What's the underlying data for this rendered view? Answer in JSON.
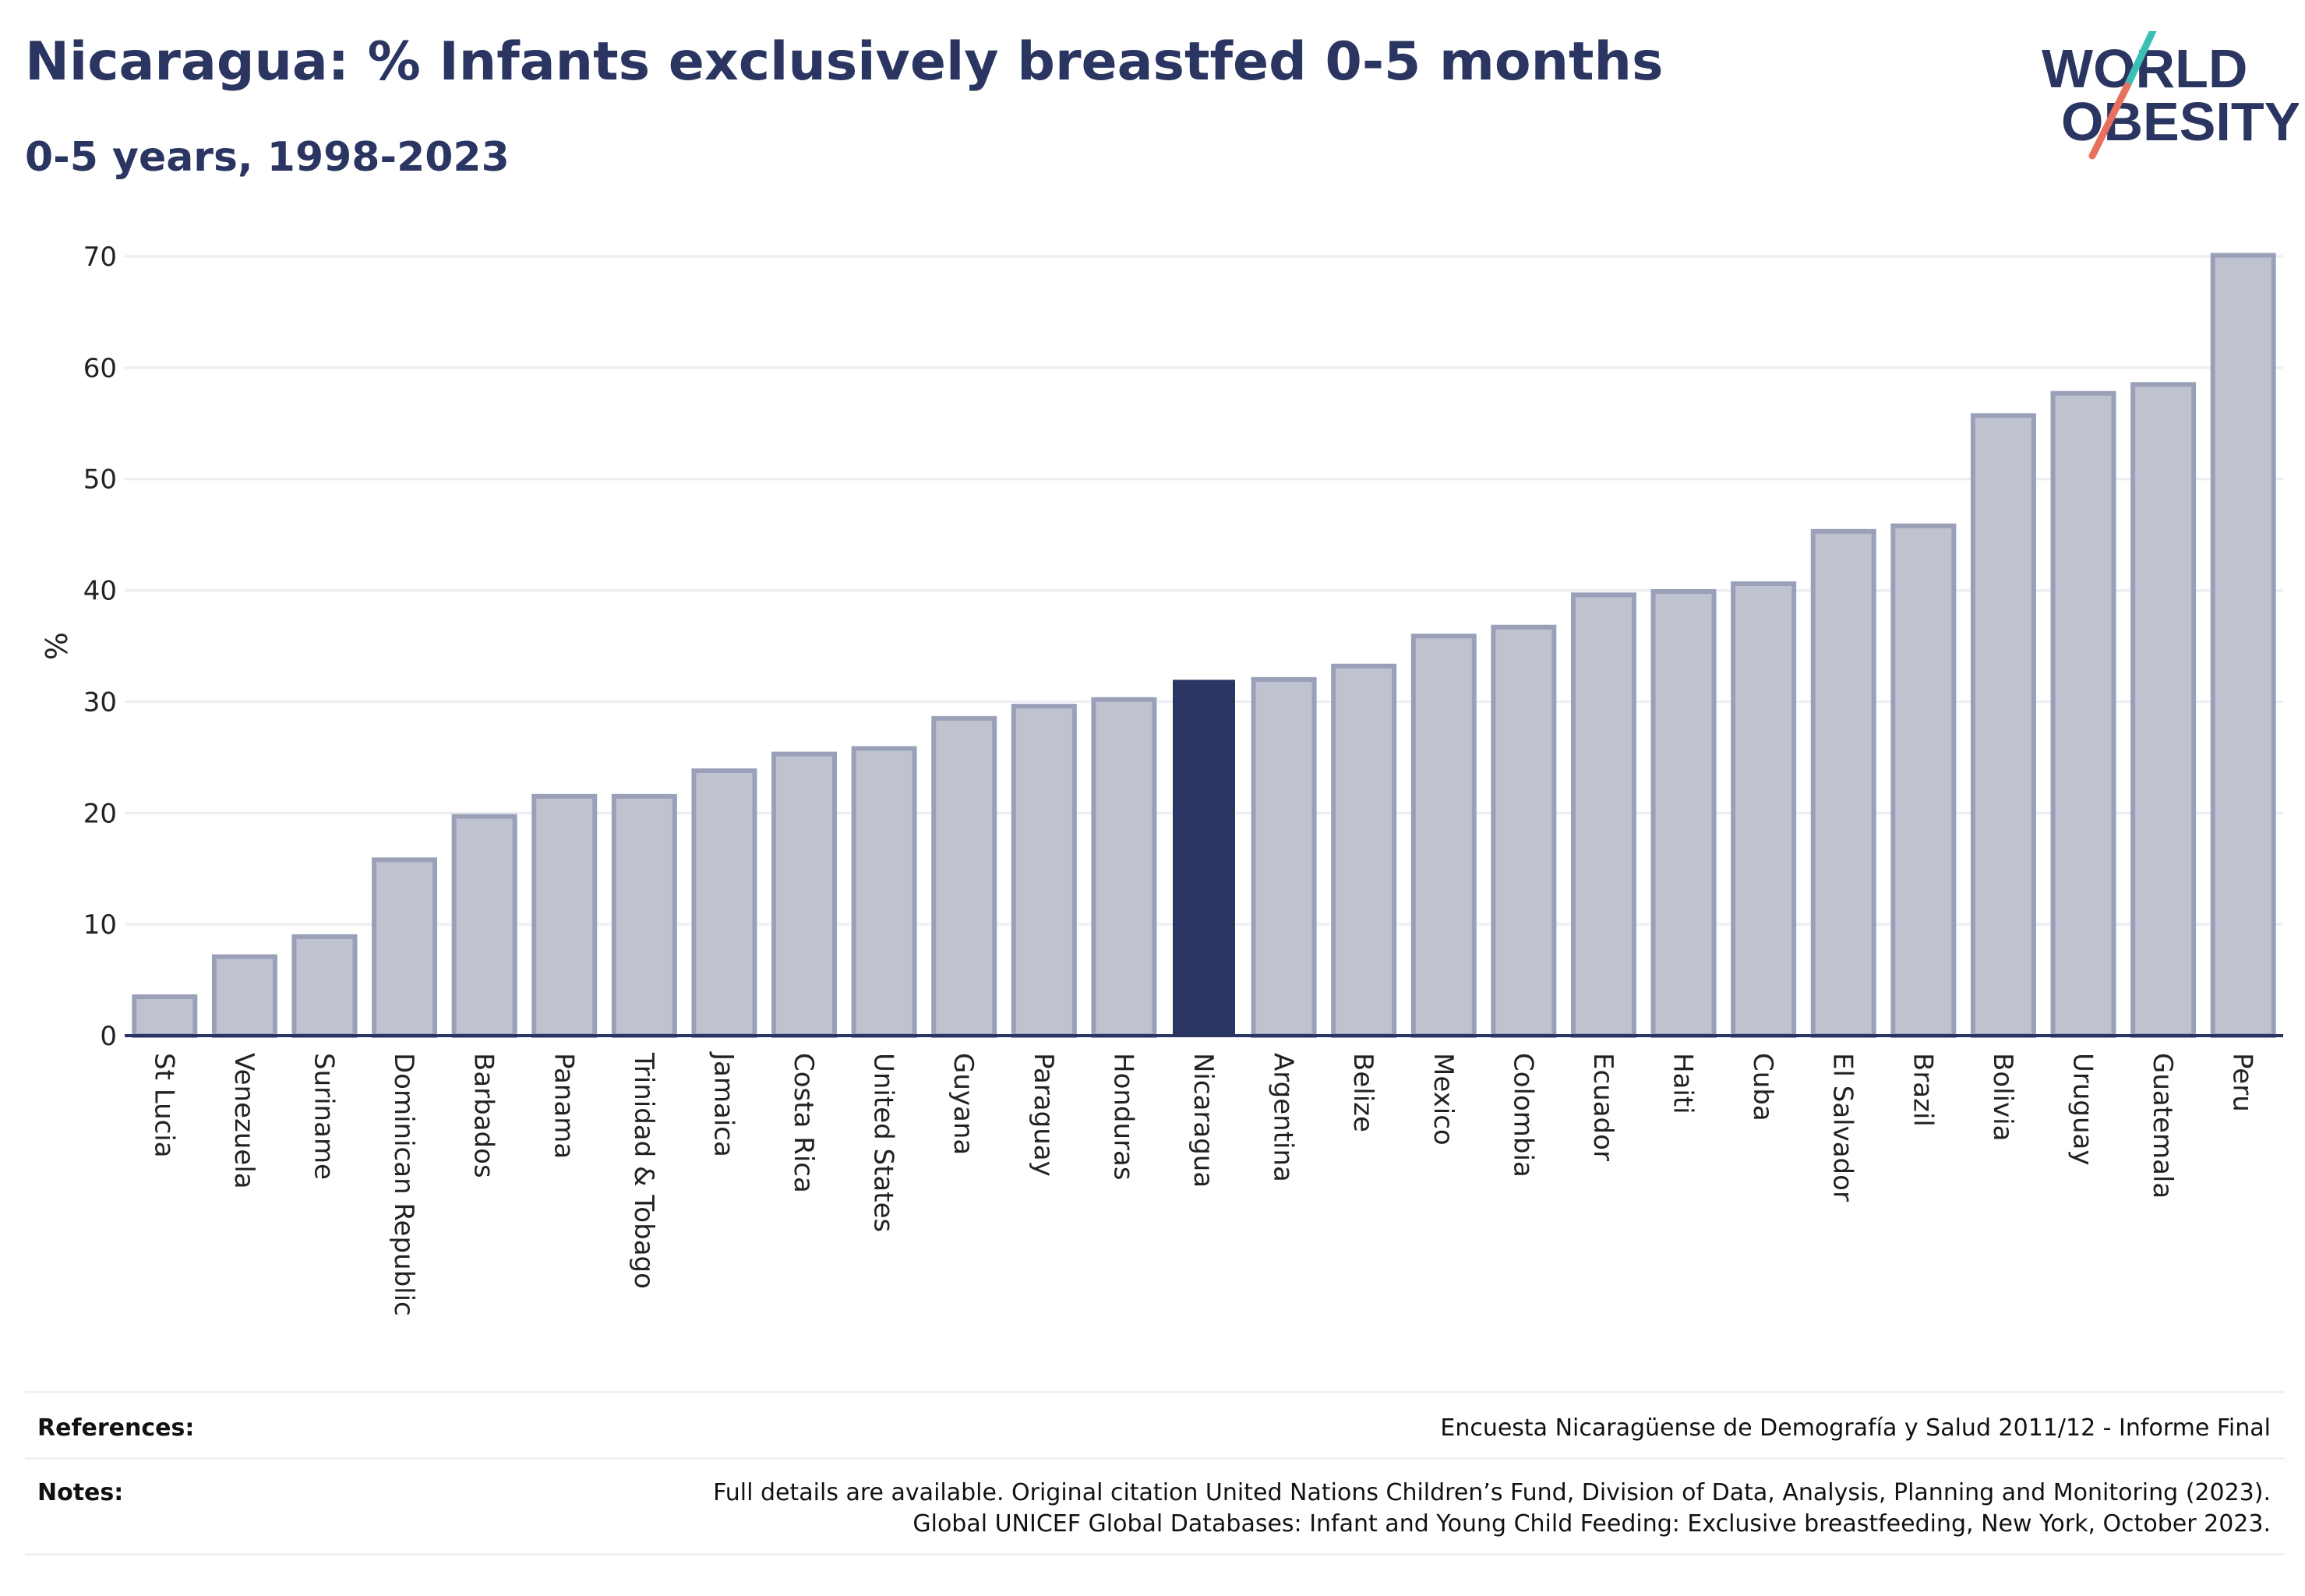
{
  "header": {
    "title": "Nicaragua: % Infants exclusively breastfed 0-5 months",
    "subtitle": "0-5 years, 1998-2023"
  },
  "logo": {
    "line1": "WORLD",
    "line2": "OBESITY",
    "colors": {
      "text": "#2b3561",
      "slash_teal": "#3bbfb5",
      "slash_coral": "#e8705f"
    }
  },
  "chart_data": {
    "type": "bar",
    "ylabel": "%",
    "xlabel": "",
    "ylim": [
      0,
      70
    ],
    "yticks": [
      "0",
      "10",
      "20",
      "30",
      "40",
      "50",
      "60",
      "70"
    ],
    "grid": true,
    "highlight": "Nicaragua",
    "colors": {
      "bar": "#bfc3d0",
      "bar_border": "#9aa0b8",
      "highlight": "#2b3561",
      "grid": "#ececf2"
    },
    "categories": [
      "St Lucia",
      "Venezuela",
      "Suriname",
      "Dominican Republic",
      "Barbados",
      "Panama",
      "Trinidad & Tobago",
      "Jamaica",
      "Costa Rica",
      "United States",
      "Guyana",
      "Paraguay",
      "Honduras",
      "Nicaragua",
      "Argentina",
      "Belize",
      "Mexico",
      "Colombia",
      "Ecuador",
      "Haiti",
      "Cuba",
      "El Salvador",
      "Brazil",
      "Bolivia",
      "Uruguay",
      "Guatemala",
      "Peru"
    ],
    "values": [
      3.5,
      7.1,
      8.9,
      15.8,
      19.7,
      21.5,
      21.5,
      23.8,
      25.3,
      25.8,
      28.5,
      29.6,
      30.2,
      31.9,
      32.0,
      33.2,
      35.9,
      36.7,
      39.6,
      39.9,
      40.6,
      45.3,
      45.8,
      55.7,
      57.7,
      58.5,
      70.1
    ]
  },
  "footer": {
    "references_label": "References:",
    "references_text": "Encuesta Nicaragüense de Demografía y Salud 2011/12 - Informe Final",
    "notes_label": "Notes:",
    "notes_line1": "Full details are available. Original citation United Nations Children’s Fund, Division of Data, Analysis, Planning and Monitoring (2023).",
    "notes_line2": "Global UNICEF Global Databases: Infant and Young Child Feeding: Exclusive breastfeeding, New York, October 2023."
  }
}
